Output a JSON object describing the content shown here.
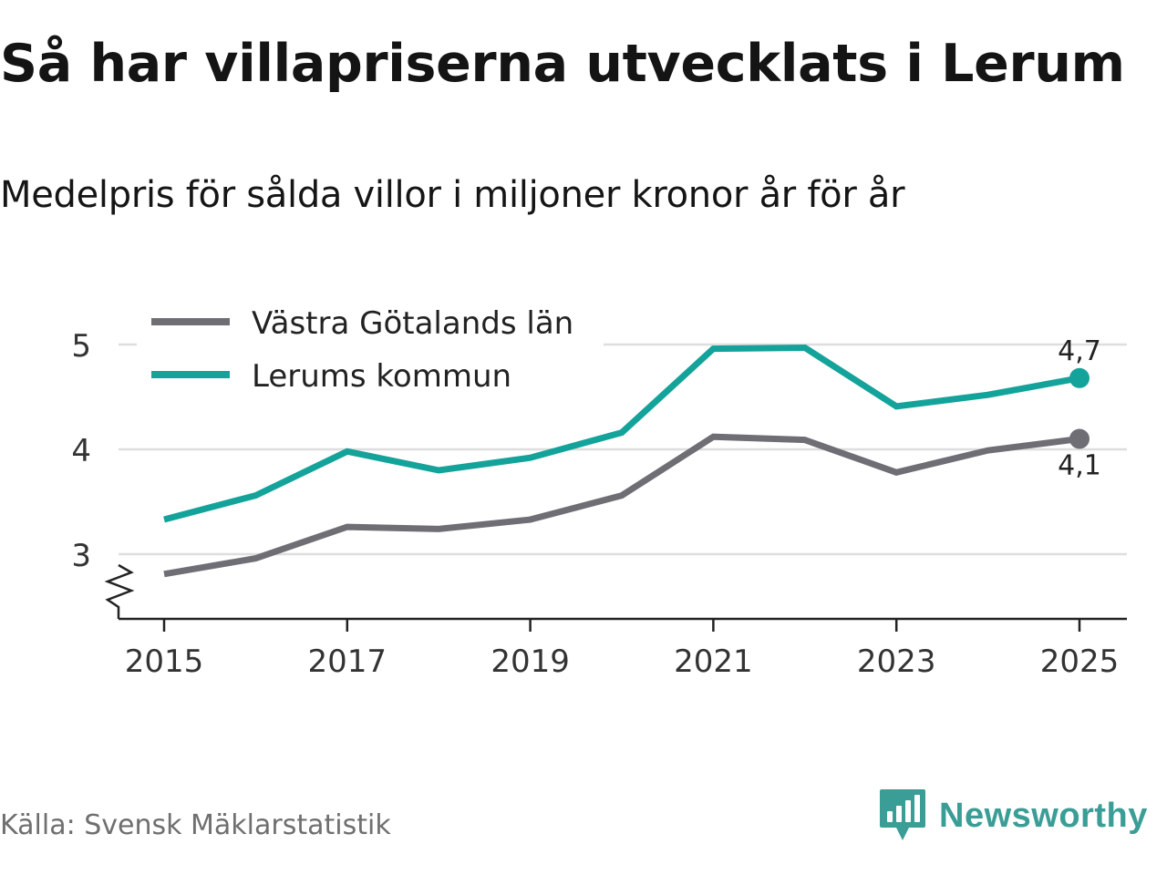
{
  "header": {
    "title": "Så har villapriserna utvecklats i Lerum",
    "subtitle": "Medelpris för sålda villor i miljoner kronor år för år"
  },
  "footer": {
    "source": "Källa: Svensk Mäklarstatistik",
    "brand": "Newsworthy"
  },
  "colors": {
    "lerum": "#13a39a",
    "vg": "#6f6e74",
    "grid": "#dedede",
    "axis": "#222222"
  },
  "icons": {
    "brand_logo": "newsworthy-bar-chart-speech-bubble-icon",
    "axis_break": "zigzag-axis-break-icon"
  },
  "chart_data": {
    "type": "line",
    "title": "Så har villapriserna utvecklats i Lerum",
    "subtitle": "Medelpris för sålda villor i miljoner kronor år för år",
    "xlabel": "",
    "ylabel": "",
    "x": [
      2015,
      2016,
      2017,
      2018,
      2019,
      2020,
      2021,
      2022,
      2023,
      2024,
      2025
    ],
    "xticks": [
      "2015",
      "2017",
      "2019",
      "2021",
      "2023",
      "2025"
    ],
    "yticks": [
      "3",
      "4",
      "5"
    ],
    "ylim": [
      2.4,
      5.1
    ],
    "y_axis_break": true,
    "grid": true,
    "legend_position": "top-left",
    "series": [
      {
        "name": "Västra Götalands län",
        "color": "#6f6e74",
        "values": [
          2.81,
          2.96,
          3.26,
          3.24,
          3.33,
          3.56,
          4.12,
          4.09,
          3.78,
          3.99,
          4.1
        ],
        "end_label": "4,1",
        "end_label_side": "below"
      },
      {
        "name": "Lerums kommun",
        "color": "#13a39a",
        "values": [
          3.33,
          3.56,
          3.98,
          3.8,
          3.92,
          4.16,
          4.96,
          4.97,
          4.41,
          4.52,
          4.68
        ],
        "end_label": "4,7",
        "end_label_side": "above"
      }
    ]
  }
}
